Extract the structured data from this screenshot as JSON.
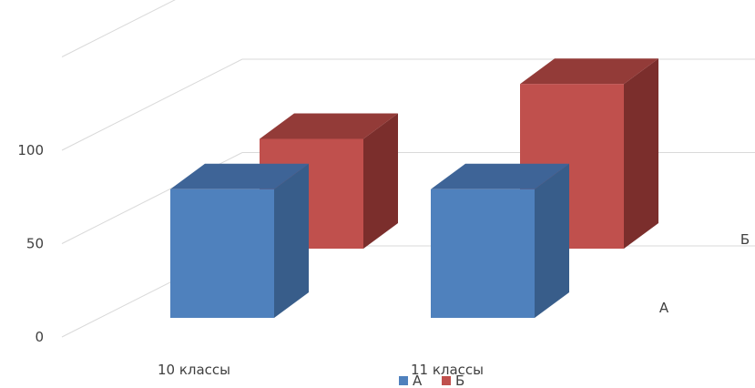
{
  "chart_data": {
    "type": "bar",
    "subtype": "3d-column",
    "categories": [
      "10 классы",
      "11 классы"
    ],
    "series": [
      {
        "name": "А",
        "values": [
          82,
          82
        ],
        "color": "#4F81BD",
        "color_side": "#385D8A",
        "color_top": "#3E6497"
      },
      {
        "name": "Б",
        "values": [
          60,
          90
        ],
        "color": "#C0504D",
        "color_side": "#7B2E2C",
        "color_top": "#933B38"
      }
    ],
    "yticks": [
      "0",
      "50",
      "100"
    ],
    "ylim": [
      0,
      120
    ],
    "depth_labels": [
      "А",
      "Б"
    ],
    "grid": true,
    "legend": "bottom"
  }
}
